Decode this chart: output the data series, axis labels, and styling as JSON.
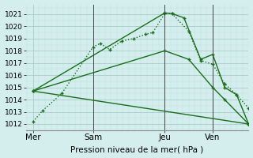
{
  "xlabel": "Pression niveau de la mer( hPa )",
  "ylim": [
    1011.5,
    1021.8
  ],
  "yticks": [
    1012,
    1013,
    1014,
    1015,
    1016,
    1017,
    1018,
    1019,
    1020,
    1021
  ],
  "bg_color": "#d4eeee",
  "grid_major_color": "#aacccc",
  "grid_minor_color": "#bbdddd",
  "line_color": "#1a6e1a",
  "xtick_labels": [
    "Mer",
    "Sam",
    "Jeu",
    "Ven"
  ],
  "xtick_positions": [
    0.0,
    2.5,
    5.5,
    7.5
  ],
  "xlim": [
    -0.3,
    9.0
  ],
  "vline_positions": [
    2.5,
    5.5,
    7.5
  ],
  "line1_x": [
    0.0,
    0.4,
    1.2,
    2.5,
    2.8,
    3.2,
    3.7,
    4.2,
    4.7,
    5.0,
    5.5,
    5.8,
    6.5,
    7.0,
    7.5,
    8.0,
    8.5,
    9.0
  ],
  "line1_y": [
    1012.2,
    1013.1,
    1014.5,
    1018.3,
    1018.6,
    1018.1,
    1018.8,
    1019.0,
    1019.35,
    1019.5,
    1021.05,
    1021.05,
    1019.6,
    1017.2,
    1016.9,
    1015.3,
    1014.4,
    1013.3
  ],
  "line1_style": ":",
  "line2_x": [
    0.0,
    5.5,
    5.8,
    6.3,
    7.0,
    7.5,
    8.0,
    8.5,
    9.0
  ],
  "line2_y": [
    1014.7,
    1021.1,
    1021.05,
    1020.7,
    1017.3,
    1017.7,
    1015.0,
    1014.4,
    1012.0
  ],
  "line2_style": "-",
  "line3_x": [
    0.0,
    5.5,
    6.5,
    7.5,
    8.0,
    9.0
  ],
  "line3_y": [
    1014.7,
    1018.0,
    1017.3,
    1015.0,
    1014.0,
    1012.0
  ],
  "line3_style": "-",
  "line4_x": [
    0.0,
    9.0
  ],
  "line4_y": [
    1014.7,
    1012.0
  ],
  "line4_style": "-"
}
